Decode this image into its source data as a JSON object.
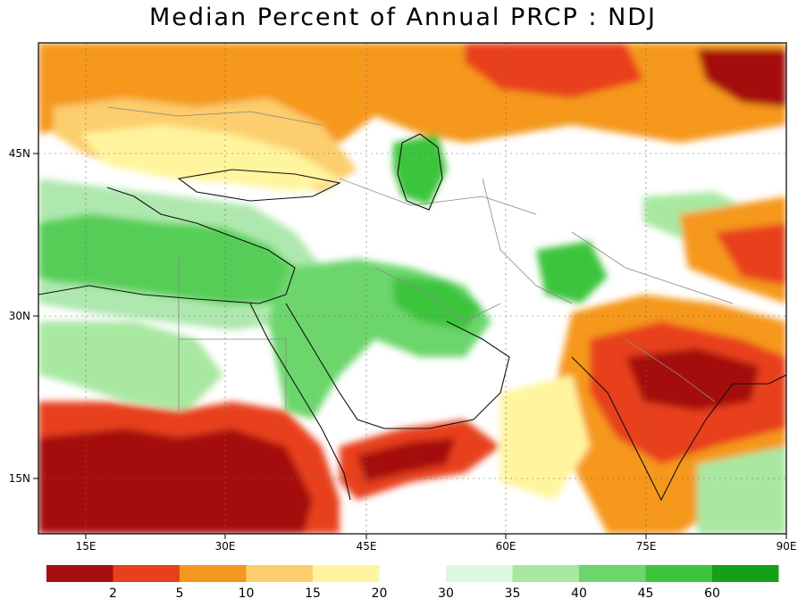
{
  "title": "Median Percent of Annual PRCP  :  NDJ",
  "axes": {
    "lon_labels": [
      "15E",
      "30E",
      "45E",
      "60E",
      "75E",
      "90E"
    ],
    "lat_labels": [
      "45N",
      "30N",
      "15N"
    ],
    "lon_values": [
      15,
      30,
      45,
      60,
      75,
      90
    ],
    "lat_values": [
      45,
      30,
      15
    ],
    "lon_range": [
      10,
      90
    ],
    "lat_range": [
      10,
      55
    ]
  },
  "legend": {
    "dry_colors": [
      "#a50f0f",
      "#e8401c",
      "#f5981e",
      "#fcce6d",
      "#fff59e"
    ],
    "wet_colors": [
      "#dff7df",
      "#a8e8a0",
      "#6cd66c",
      "#3cc43c",
      "#15a01a"
    ],
    "dry_labels": [
      "2",
      "5",
      "10",
      "15",
      "20"
    ],
    "wet_labels": [
      "30",
      "35",
      "40",
      "45",
      "60"
    ]
  },
  "colors": {
    "land_neutral": "#ffffff",
    "border": "#888888",
    "coast": "#111111"
  }
}
